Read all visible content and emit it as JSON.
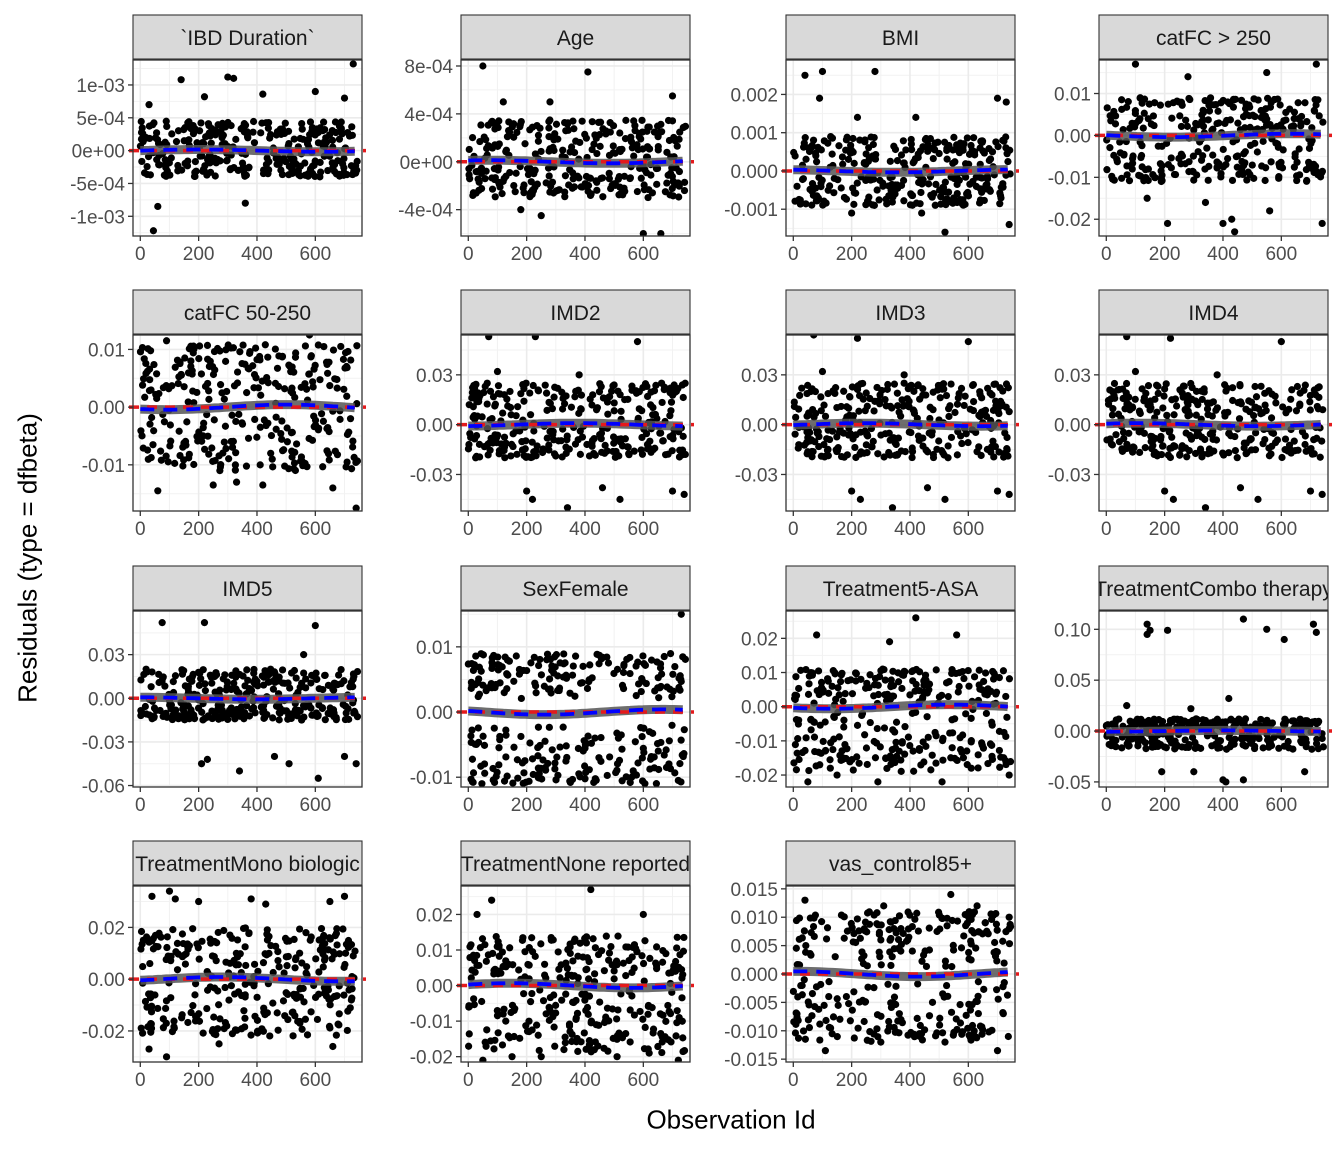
{
  "chart_data": {
    "type": "scatter",
    "xlabel": "Observation Id",
    "ylabel": "Residuals (type = dfbeta)",
    "xlim": [
      -25,
      760
    ],
    "xticks": [
      0,
      200,
      400,
      600
    ],
    "grid": true,
    "n_observations": 745,
    "reference_line": {
      "y": 0,
      "color": "#e41a1c",
      "style": "dashed"
    },
    "smooth_line": {
      "color": "#0000ff",
      "style": "dashed",
      "band_color": "#555555"
    },
    "panels": [
      {
        "title": "`IBD Duration`",
        "ylim": [
          -0.0013,
          0.00138
        ],
        "yticks": [
          -0.001,
          -0.0005,
          0,
          0.0005,
          0.001
        ],
        "yticklabels": [
          "-1e-03",
          "-5e-04",
          "0e+00",
          "5e-04",
          "1e-03"
        ],
        "pos_range": [
          2e-05,
          0.00045
        ],
        "neg_range": [
          -0.0004,
          -2e-05
        ],
        "outliers": [
          [
            45,
            -0.00122
          ],
          [
            60,
            -0.00085
          ],
          [
            140,
            0.00108
          ],
          [
            300,
            0.00112
          ],
          [
            320,
            0.0011
          ],
          [
            360,
            -0.0008
          ],
          [
            420,
            0.00086
          ],
          [
            600,
            0.0009
          ],
          [
            730,
            0.00132
          ],
          [
            700,
            0.0008
          ],
          [
            30,
            0.0007
          ],
          [
            220,
            0.00082
          ]
        ]
      },
      {
        "title": "Age",
        "ylim": [
          -0.00062,
          0.00085
        ],
        "yticks": [
          -0.0004,
          0,
          0.0004,
          0.0008
        ],
        "yticklabels": [
          "-4e-04",
          "0e+00",
          "4e-04",
          "8e-04"
        ],
        "pos_range": [
          2e-05,
          0.00035
        ],
        "neg_range": [
          -0.0003,
          -2e-05
        ],
        "outliers": [
          [
            50,
            0.0008
          ],
          [
            410,
            0.00075
          ],
          [
            600,
            -0.0006
          ],
          [
            660,
            -0.0006
          ],
          [
            120,
            0.0005
          ],
          [
            280,
            0.0005
          ],
          [
            700,
            0.00055
          ],
          [
            250,
            -0.00045
          ],
          [
            180,
            -0.0004
          ]
        ]
      },
      {
        "title": "BMI",
        "ylim": [
          -0.0017,
          0.0029
        ],
        "yticks": [
          -0.001,
          0,
          0.001,
          0.002
        ],
        "yticklabels": [
          "-0.001",
          "0.000",
          "0.001",
          "0.002"
        ],
        "pos_range": [
          5e-05,
          0.0009
        ],
        "neg_range": [
          -0.0009,
          -5e-05
        ],
        "outliers": [
          [
            40,
            0.0025
          ],
          [
            100,
            0.0026
          ],
          [
            280,
            0.0026
          ],
          [
            90,
            0.0019
          ],
          [
            700,
            0.0019
          ],
          [
            730,
            0.0018
          ],
          [
            520,
            -0.0016
          ],
          [
            740,
            -0.0014
          ],
          [
            220,
            0.0014
          ],
          [
            420,
            0.0014
          ],
          [
            200,
            -0.0011
          ],
          [
            440,
            -0.0011
          ]
        ]
      },
      {
        "title": "catFC > 250",
        "ylim": [
          -0.024,
          0.018
        ],
        "yticks": [
          -0.02,
          -0.01,
          0,
          0.01
        ],
        "yticklabels": [
          "-0.02",
          "-0.01",
          "0.00",
          "0.01"
        ],
        "pos_range": [
          0.0005,
          0.009
        ],
        "neg_range": [
          -0.011,
          -0.0005
        ],
        "outliers": [
          [
            210,
            -0.021
          ],
          [
            400,
            -0.021
          ],
          [
            430,
            -0.02
          ],
          [
            440,
            -0.023
          ],
          [
            560,
            -0.018
          ],
          [
            740,
            -0.021
          ],
          [
            100,
            0.017
          ],
          [
            550,
            0.015
          ],
          [
            720,
            0.017
          ],
          [
            280,
            0.014
          ],
          [
            140,
            -0.015
          ],
          [
            340,
            -0.016
          ]
        ]
      },
      {
        "title": "catFC 50-250",
        "ylim": [
          -0.018,
          0.0125
        ],
        "yticks": [
          -0.01,
          0,
          0.01
        ],
        "yticklabels": [
          "-0.01",
          "0.00",
          "0.01"
        ],
        "pos_range": [
          0.0005,
          0.011
        ],
        "neg_range": [
          -0.011,
          -0.0005
        ],
        "outliers": [
          [
            740,
            -0.0175
          ],
          [
            60,
            -0.0145
          ],
          [
            250,
            -0.0135
          ],
          [
            420,
            -0.0135
          ],
          [
            580,
            0.0125
          ],
          [
            330,
            -0.013
          ],
          [
            90,
            0.0115
          ],
          [
            660,
            -0.014
          ]
        ]
      },
      {
        "title": "IMD2",
        "ylim": [
          -0.052,
          0.054
        ],
        "yticks": [
          -0.03,
          0,
          0.03
        ],
        "yticklabels": [
          "-0.03",
          "0.00",
          "0.03"
        ],
        "pos_range": [
          0.0005,
          0.025
        ],
        "neg_range": [
          -0.02,
          -0.0005
        ],
        "outliers": [
          [
            70,
            0.053
          ],
          [
            230,
            0.053
          ],
          [
            580,
            0.05
          ],
          [
            200,
            -0.04
          ],
          [
            220,
            -0.045
          ],
          [
            340,
            -0.05
          ],
          [
            520,
            -0.045
          ],
          [
            610,
            -0.055
          ],
          [
            700,
            -0.04
          ],
          [
            740,
            -0.042
          ],
          [
            460,
            -0.038
          ],
          [
            100,
            0.032
          ],
          [
            380,
            0.03
          ]
        ]
      },
      {
        "title": "IMD3",
        "ylim": [
          -0.052,
          0.054
        ],
        "yticks": [
          -0.03,
          0,
          0.03
        ],
        "yticklabels": [
          "-0.03",
          "0.00",
          "0.03"
        ],
        "pos_range": [
          0.0005,
          0.025
        ],
        "neg_range": [
          -0.02,
          -0.0005
        ],
        "outliers": [
          [
            70,
            0.054
          ],
          [
            220,
            0.052
          ],
          [
            600,
            0.05
          ],
          [
            200,
            -0.04
          ],
          [
            230,
            -0.045
          ],
          [
            340,
            -0.05
          ],
          [
            520,
            -0.045
          ],
          [
            610,
            -0.055
          ],
          [
            700,
            -0.04
          ],
          [
            740,
            -0.042
          ],
          [
            460,
            -0.038
          ],
          [
            100,
            0.032
          ],
          [
            380,
            0.03
          ]
        ]
      },
      {
        "title": "IMD4",
        "ylim": [
          -0.052,
          0.054
        ],
        "yticks": [
          -0.03,
          0,
          0.03
        ],
        "yticklabels": [
          "-0.03",
          "0.00",
          "0.03"
        ],
        "pos_range": [
          0.0005,
          0.025
        ],
        "neg_range": [
          -0.02,
          -0.0005
        ],
        "outliers": [
          [
            70,
            0.053
          ],
          [
            220,
            0.052
          ],
          [
            600,
            0.05
          ],
          [
            200,
            -0.04
          ],
          [
            230,
            -0.045
          ],
          [
            340,
            -0.05
          ],
          [
            520,
            -0.045
          ],
          [
            610,
            -0.055
          ],
          [
            700,
            -0.04
          ],
          [
            740,
            -0.042
          ],
          [
            460,
            -0.038
          ],
          [
            100,
            0.032
          ],
          [
            380,
            0.03
          ]
        ]
      },
      {
        "title": "IMD5",
        "ylim": [
          -0.061,
          0.06
        ],
        "yticks": [
          -0.06,
          -0.03,
          0,
          0.03
        ],
        "yticklabels": [
          "-0.06",
          "-0.03",
          "0.00",
          "0.03"
        ],
        "pos_range": [
          0.0005,
          0.02
        ],
        "neg_range": [
          -0.015,
          -0.0005
        ],
        "outliers": [
          [
            75,
            0.052
          ],
          [
            220,
            0.052
          ],
          [
            600,
            0.05
          ],
          [
            210,
            -0.045
          ],
          [
            230,
            -0.042
          ],
          [
            340,
            -0.05
          ],
          [
            510,
            -0.045
          ],
          [
            610,
            -0.055
          ],
          [
            700,
            -0.04
          ],
          [
            740,
            -0.045
          ],
          [
            460,
            -0.04
          ],
          [
            20,
            0.02
          ],
          [
            560,
            0.03
          ]
        ]
      },
      {
        "title": "SexFemale",
        "ylim": [
          -0.0115,
          0.0155
        ],
        "yticks": [
          -0.01,
          0,
          0.01
        ],
        "yticklabels": [
          "-0.01",
          "0.00",
          "0.01"
        ],
        "pos_range": [
          0.002,
          0.009
        ],
        "neg_range": [
          -0.011,
          -0.002
        ],
        "outliers": [
          [
            730,
            0.015
          ],
          [
            90,
            -0.0108
          ],
          [
            350,
            -0.0108
          ],
          [
            720,
            -0.0105
          ],
          [
            430,
            -0.0108
          ],
          [
            560,
            -0.01
          ]
        ]
      },
      {
        "title": "Treatment5-ASA",
        "ylim": [
          -0.0235,
          0.028
        ],
        "yticks": [
          -0.02,
          -0.01,
          0,
          0.01,
          0.02
        ],
        "yticklabels": [
          "-0.02",
          "-0.01",
          "0.00",
          "0.01",
          "0.02"
        ],
        "pos_range": [
          0.0005,
          0.011
        ],
        "neg_range": [
          -0.019,
          -0.0005
        ],
        "outliers": [
          [
            420,
            0.026
          ],
          [
            560,
            0.021
          ],
          [
            80,
            0.021
          ],
          [
            330,
            0.019
          ],
          [
            50,
            -0.022
          ],
          [
            290,
            -0.022
          ],
          [
            510,
            -0.022
          ],
          [
            740,
            -0.02
          ],
          [
            150,
            -0.02
          ],
          [
            610,
            -0.018
          ]
        ]
      },
      {
        "title": "TreatmentCombo therapy",
        "ylim": [
          -0.055,
          0.118
        ],
        "yticks": [
          -0.05,
          0,
          0.05,
          0.1
        ],
        "yticklabels": [
          "-0.05",
          "0.00",
          "0.05",
          "0.10"
        ],
        "pos_range": [
          0.0005,
          0.012
        ],
        "neg_range": [
          -0.018,
          -0.0005
        ],
        "outliers": [
          [
            140,
            0.105
          ],
          [
            150,
            0.099
          ],
          [
            140,
            0.095
          ],
          [
            210,
            0.099
          ],
          [
            470,
            0.11
          ],
          [
            550,
            0.1
          ],
          [
            710,
            0.105
          ],
          [
            720,
            0.097
          ],
          [
            610,
            0.09
          ],
          [
            420,
            0.032
          ],
          [
            70,
            0.025
          ],
          [
            290,
            0.022
          ],
          [
            400,
            -0.048
          ],
          [
            410,
            -0.05
          ],
          [
            470,
            -0.048
          ],
          [
            300,
            -0.04
          ],
          [
            190,
            -0.04
          ],
          [
            680,
            -0.04
          ]
        ]
      },
      {
        "title": "TreatmentMono biologic",
        "ylim": [
          -0.032,
          0.036
        ],
        "yticks": [
          -0.02,
          0,
          0.02
        ],
        "yticklabels": [
          "-0.02",
          "0.00",
          "0.02"
        ],
        "pos_range": [
          0.0005,
          0.02
        ],
        "neg_range": [
          -0.022,
          -0.0005
        ],
        "outliers": [
          [
            100,
            0.034
          ],
          [
            40,
            0.032
          ],
          [
            120,
            0.031
          ],
          [
            90,
            -0.03
          ],
          [
            200,
            0.03
          ],
          [
            700,
            0.032
          ],
          [
            650,
            0.03
          ],
          [
            380,
            0.031
          ],
          [
            430,
            0.029
          ],
          [
            30,
            -0.027
          ],
          [
            660,
            -0.026
          ],
          [
            270,
            -0.025
          ]
        ]
      },
      {
        "title": "TreatmentNone reported",
        "ylim": [
          -0.0215,
          0.028
        ],
        "yticks": [
          -0.02,
          -0.01,
          0,
          0.01,
          0.02
        ],
        "yticklabels": [
          "-0.02",
          "-0.01",
          "0.00",
          "0.01",
          "0.02"
        ],
        "pos_range": [
          0.0005,
          0.014
        ],
        "neg_range": [
          -0.019,
          -0.0005
        ],
        "outliers": [
          [
            420,
            0.027
          ],
          [
            80,
            0.024
          ],
          [
            30,
            0.02
          ],
          [
            600,
            0.02
          ],
          [
            50,
            -0.021
          ],
          [
            250,
            -0.02
          ],
          [
            510,
            -0.02
          ],
          [
            720,
            -0.021
          ],
          [
            150,
            -0.02
          ],
          [
            620,
            -0.019
          ]
        ]
      },
      {
        "title": "vas_control85+",
        "ylim": [
          -0.0155,
          0.0155
        ],
        "yticks": [
          -0.015,
          -0.01,
          -0.005,
          0,
          0.005,
          0.01,
          0.015
        ],
        "yticklabels": [
          "-0.015",
          "-0.010",
          "-0.005",
          "0.000",
          "0.005",
          "0.010",
          "0.015"
        ],
        "pos_range": [
          0.001,
          0.011
        ],
        "neg_range": [
          -0.012,
          -0.001
        ],
        "outliers": [
          [
            110,
            -0.0135
          ],
          [
            700,
            -0.0135
          ],
          [
            540,
            0.014
          ],
          [
            40,
            0.013
          ],
          [
            630,
            0.012
          ],
          [
            310,
            0.012
          ],
          [
            740,
            0.01
          ],
          [
            300,
            -0.012
          ],
          [
            520,
            -0.012
          ]
        ]
      }
    ]
  }
}
